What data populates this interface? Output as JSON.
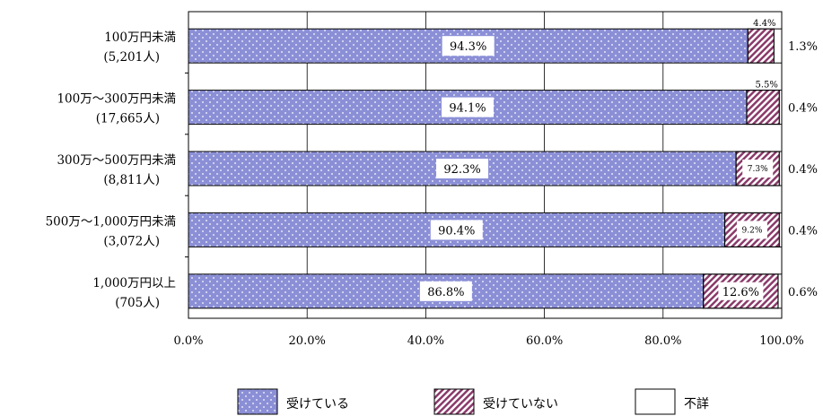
{
  "chart_data": {
    "type": "bar",
    "orientation": "horizontal",
    "stacked": true,
    "categories": [
      {
        "line1": "100万円未満",
        "line2": "(5,201人)"
      },
      {
        "line1": "100万～300万円未満",
        "line2": "(17,665人)"
      },
      {
        "line1": "300万～500万円未満",
        "line2": "(8,811人)"
      },
      {
        "line1": "500万～1,000万円未満",
        "line2": "(3,072人)"
      },
      {
        "line1": "1,000万円以上",
        "line2": "(705人)"
      }
    ],
    "series": [
      {
        "name": "受けている",
        "values": [
          94.3,
          94.1,
          92.3,
          90.4,
          86.8
        ],
        "labels": [
          "94.3%",
          "94.1%",
          "92.3%",
          "90.4%",
          "86.8%"
        ],
        "color": "#8b8fd6"
      },
      {
        "name": "受けていない",
        "values": [
          4.4,
          5.5,
          7.3,
          9.2,
          12.6
        ],
        "labels": [
          "4.4%",
          "5.5%",
          "7.3%",
          "9.2%",
          "12.6%"
        ],
        "color": "#8a3a6a"
      },
      {
        "name": "不詳",
        "values": [
          1.3,
          0.4,
          0.4,
          0.4,
          0.6
        ],
        "labels": [
          "1.3%",
          "0.4%",
          "0.4%",
          "0.4%",
          "0.6%"
        ],
        "color": "#ffffff"
      }
    ],
    "xlim": [
      0,
      100
    ],
    "x_ticks": [
      0,
      20,
      40,
      60,
      80,
      100
    ],
    "x_tick_labels": [
      "0.0%",
      "20.0%",
      "40.0%",
      "60.0%",
      "80.0%",
      "100.0%"
    ],
    "grid": true,
    "legend_position": "bottom"
  }
}
